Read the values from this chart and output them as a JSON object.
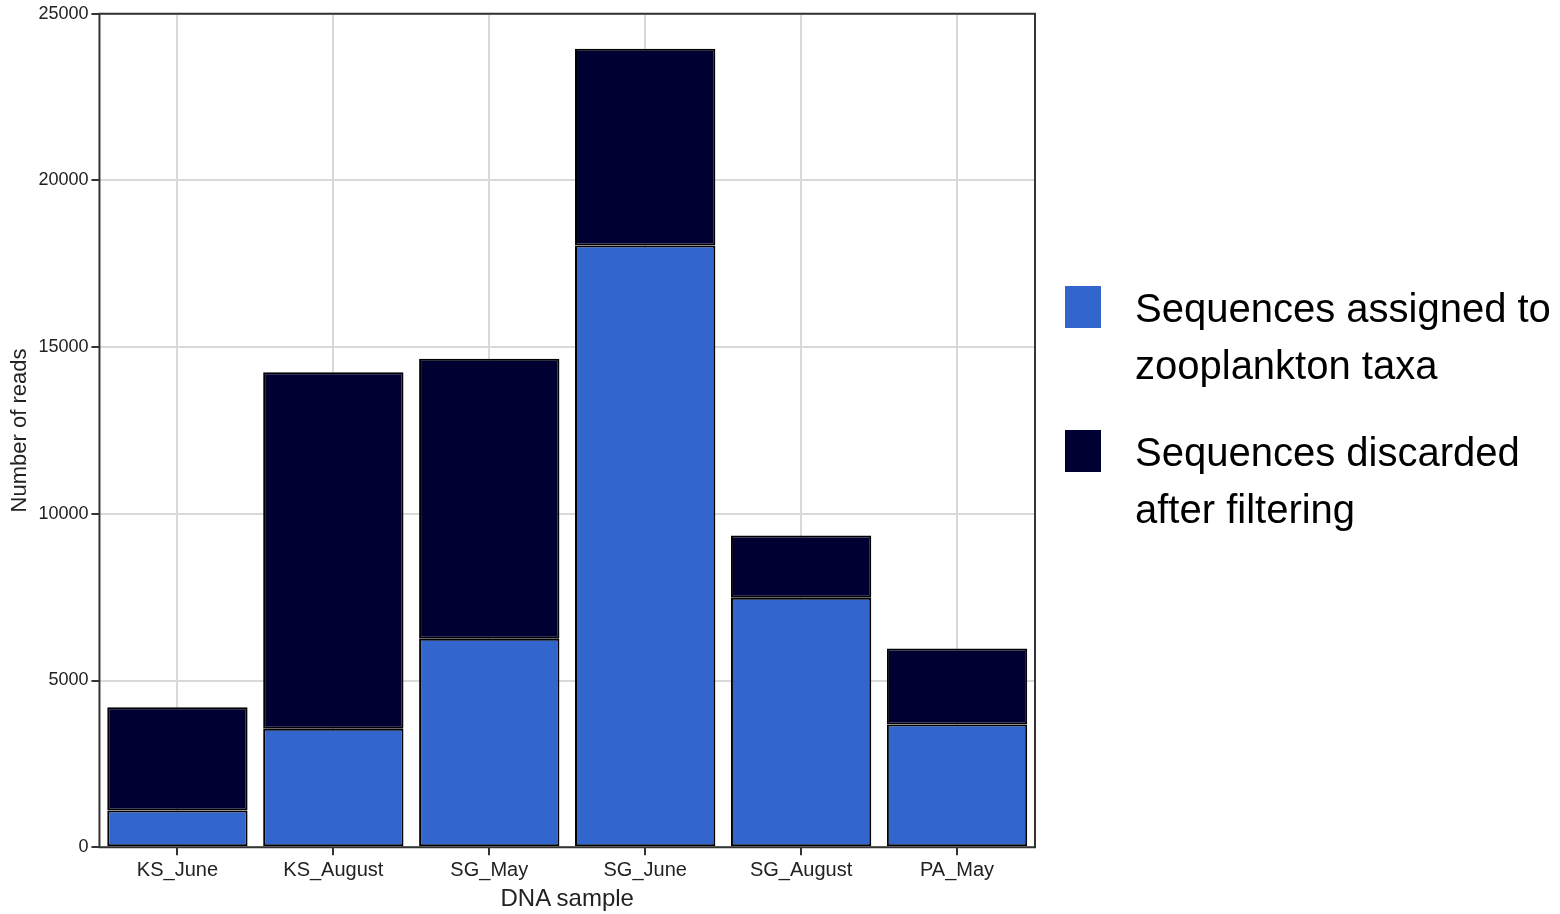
{
  "chart_data": {
    "type": "bar",
    "stacked": true,
    "xlabel": "DNA sample",
    "ylabel": "Number of reads",
    "categories": [
      "KS_June",
      "KS_August",
      "SG_May",
      "SG_June",
      "SG_August",
      "PA_May"
    ],
    "series": [
      {
        "name": "Sequences assigned to zooplankton taxa",
        "color": "#3366cc",
        "values": [
          1100,
          3550,
          6250,
          18050,
          7480,
          3680
        ]
      },
      {
        "name": "Sequences discarded after filtering",
        "color": "#000033",
        "values": [
          3100,
          10700,
          8400,
          5900,
          1870,
          2280
        ]
      }
    ],
    "ylim": [
      0,
      25000
    ],
    "yticks": [
      0,
      5000,
      10000,
      15000,
      20000,
      25000
    ],
    "grid": true,
    "legend": "right"
  }
}
